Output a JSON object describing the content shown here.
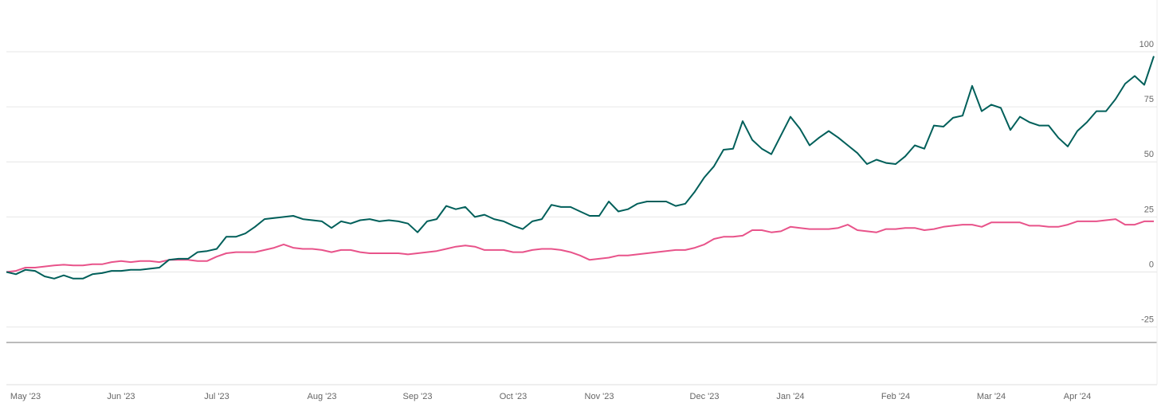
{
  "chart_data": {
    "type": "line",
    "categories": [
      null,
      null,
      "May '23",
      null,
      null,
      null,
      null,
      null,
      null,
      null,
      null,
      null,
      "Jun '23",
      null,
      null,
      null,
      null,
      null,
      null,
      null,
      null,
      null,
      "Jul '23",
      null,
      null,
      null,
      null,
      null,
      null,
      null,
      null,
      null,
      null,
      "Aug '23",
      null,
      null,
      null,
      null,
      null,
      null,
      null,
      null,
      null,
      "Sep '23",
      null,
      null,
      null,
      null,
      null,
      null,
      null,
      null,
      null,
      "Oct '23",
      null,
      null,
      null,
      null,
      null,
      null,
      null,
      null,
      "Nov '23",
      null,
      null,
      null,
      null,
      null,
      null,
      null,
      null,
      null,
      null,
      "Dec '23",
      null,
      null,
      null,
      null,
      null,
      null,
      null,
      null,
      "Jan '24",
      null,
      null,
      null,
      null,
      null,
      null,
      null,
      null,
      null,
      null,
      "Feb '24",
      null,
      null,
      null,
      null,
      null,
      null,
      null,
      null,
      null,
      "Mar '24",
      null,
      null,
      null,
      null,
      null,
      null,
      null,
      null,
      "Apr '24",
      null,
      null,
      null,
      null,
      null,
      null,
      null,
      null
    ],
    "series": [
      {
        "color": "#005f5a",
        "values": [
          0,
          -1,
          1,
          0.5,
          -2,
          -3,
          -1.5,
          -3,
          -3,
          -1,
          -0.5,
          0.5,
          0.5,
          1,
          1,
          1.5,
          2,
          5.5,
          6,
          6,
          9,
          9.5,
          10.5,
          16,
          16,
          17.5,
          20.5,
          24,
          24.5,
          25,
          25.5,
          24,
          23.5,
          23,
          20,
          23,
          22,
          23.5,
          24,
          23,
          23.5,
          23,
          22,
          18,
          23,
          24,
          30,
          28.5,
          29.5,
          25,
          26,
          24,
          23,
          21,
          19.5,
          23,
          24,
          30.5,
          29.5,
          29.5,
          27.5,
          25.5,
          25.5,
          32,
          27.5,
          28.5,
          31,
          32,
          32,
          32,
          30,
          31,
          36.5,
          43,
          48,
          55.5,
          56,
          68.5,
          60,
          56,
          53.5,
          62,
          70.5,
          65,
          57.5,
          61,
          64,
          61,
          57.5,
          54,
          49,
          51,
          49.5,
          49,
          52.5,
          57.5,
          56,
          66.5,
          66,
          70,
          71,
          84.5,
          73,
          76,
          74.5,
          64.5,
          70.5,
          68,
          66.5,
          66.5,
          61,
          57,
          64,
          68,
          73,
          73,
          78.5,
          85.5,
          89,
          85,
          98
        ]
      },
      {
        "color": "#e8538a",
        "values": [
          0,
          0.5,
          2,
          2,
          2.5,
          3,
          3.3,
          3,
          3,
          3.5,
          3.5,
          4.5,
          5,
          4.5,
          5,
          5,
          4.5,
          5.5,
          5.5,
          5.5,
          5,
          5,
          7,
          8.5,
          9,
          9,
          9,
          10,
          11,
          12.5,
          11,
          10.5,
          10.5,
          10,
          9,
          10,
          10,
          9,
          8.5,
          8.5,
          8.5,
          8.5,
          8,
          8.5,
          9,
          9.5,
          10.5,
          11.5,
          12,
          11.5,
          10,
          10,
          10,
          9,
          9,
          10,
          10.5,
          10.5,
          10,
          9,
          7.5,
          5.5,
          6,
          6.5,
          7.5,
          7.5,
          8,
          8.5,
          9,
          9.5,
          10,
          10,
          11,
          12.5,
          15,
          16,
          16,
          16.5,
          19,
          19,
          18,
          18.5,
          20.5,
          20,
          19.5,
          19.5,
          19.5,
          20,
          21.5,
          19,
          18.5,
          18,
          19.5,
          19.5,
          20,
          20,
          19,
          19.5,
          20.5,
          21,
          21.5,
          21.5,
          20.5,
          22.5,
          22.5,
          22.5,
          22.5,
          21,
          21,
          20.5,
          20.5,
          21.5,
          23,
          23,
          23,
          23.5,
          24,
          21.5,
          21.5,
          23,
          23
        ]
      }
    ],
    "ylim": [
      -32,
      123.5
    ],
    "yticks": [
      100,
      75,
      50,
      25,
      0,
      -25
    ],
    "grid": true
  }
}
